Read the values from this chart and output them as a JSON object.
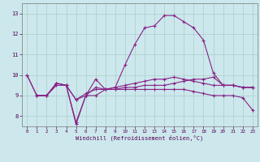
{
  "bg_color": "#cce8ec",
  "grid_color": "#aacccc",
  "line_color": "#882288",
  "xlabel": "Windchill (Refroidissement éolien,°C)",
  "xlim_min": -0.5,
  "xlim_max": 23.5,
  "ylim_min": 7.5,
  "ylim_max": 13.5,
  "xticks": [
    0,
    1,
    2,
    3,
    4,
    5,
    6,
    7,
    8,
    9,
    10,
    11,
    12,
    13,
    14,
    15,
    16,
    17,
    18,
    19,
    20,
    21,
    22,
    23
  ],
  "yticks": [
    8,
    9,
    10,
    11,
    12,
    13
  ],
  "curve1_x": [
    0,
    1,
    2,
    3,
    4,
    5,
    6,
    7,
    8,
    9,
    10,
    11,
    12,
    13,
    14,
    15,
    16,
    17,
    18,
    19,
    20,
    21,
    22,
    23
  ],
  "curve1_y": [
    10.0,
    9.0,
    9.0,
    9.6,
    9.5,
    7.6,
    9.0,
    9.0,
    9.3,
    9.4,
    10.5,
    11.5,
    12.3,
    12.4,
    12.9,
    12.9,
    12.6,
    12.3,
    11.7,
    10.1,
    9.5,
    9.5,
    9.4,
    9.4
  ],
  "curve2_x": [
    0,
    1,
    2,
    3,
    4,
    5,
    6,
    7,
    8,
    9,
    10,
    11,
    12,
    13,
    14,
    15,
    16,
    17,
    18,
    19,
    20,
    21,
    22,
    23
  ],
  "curve2_y": [
    10.0,
    9.0,
    9.0,
    9.6,
    9.5,
    8.8,
    9.0,
    9.4,
    9.3,
    9.3,
    9.4,
    9.4,
    9.5,
    9.5,
    9.5,
    9.6,
    9.7,
    9.8,
    9.8,
    9.9,
    9.5,
    9.5,
    9.4,
    9.4
  ],
  "curve3_x": [
    1,
    2,
    3,
    4,
    5,
    6,
    7,
    8,
    9,
    10,
    11,
    12,
    13,
    14,
    15,
    16,
    17,
    18,
    19,
    20,
    21,
    22,
    23
  ],
  "curve3_y": [
    9.0,
    9.0,
    9.6,
    9.5,
    7.7,
    9.0,
    9.8,
    9.3,
    9.4,
    9.5,
    9.6,
    9.7,
    9.8,
    9.8,
    9.9,
    9.8,
    9.7,
    9.6,
    9.5,
    9.5,
    9.5,
    9.4,
    9.4
  ],
  "curve4_x": [
    1,
    2,
    3,
    4,
    5,
    6,
    7,
    8,
    9,
    10,
    11,
    12,
    13,
    14,
    15,
    16,
    17,
    18,
    19,
    20,
    21,
    22,
    23
  ],
  "curve4_y": [
    9.0,
    9.0,
    9.5,
    9.5,
    8.8,
    9.1,
    9.3,
    9.3,
    9.3,
    9.3,
    9.3,
    9.3,
    9.3,
    9.3,
    9.3,
    9.3,
    9.2,
    9.1,
    9.0,
    9.0,
    9.0,
    8.9,
    8.3
  ]
}
